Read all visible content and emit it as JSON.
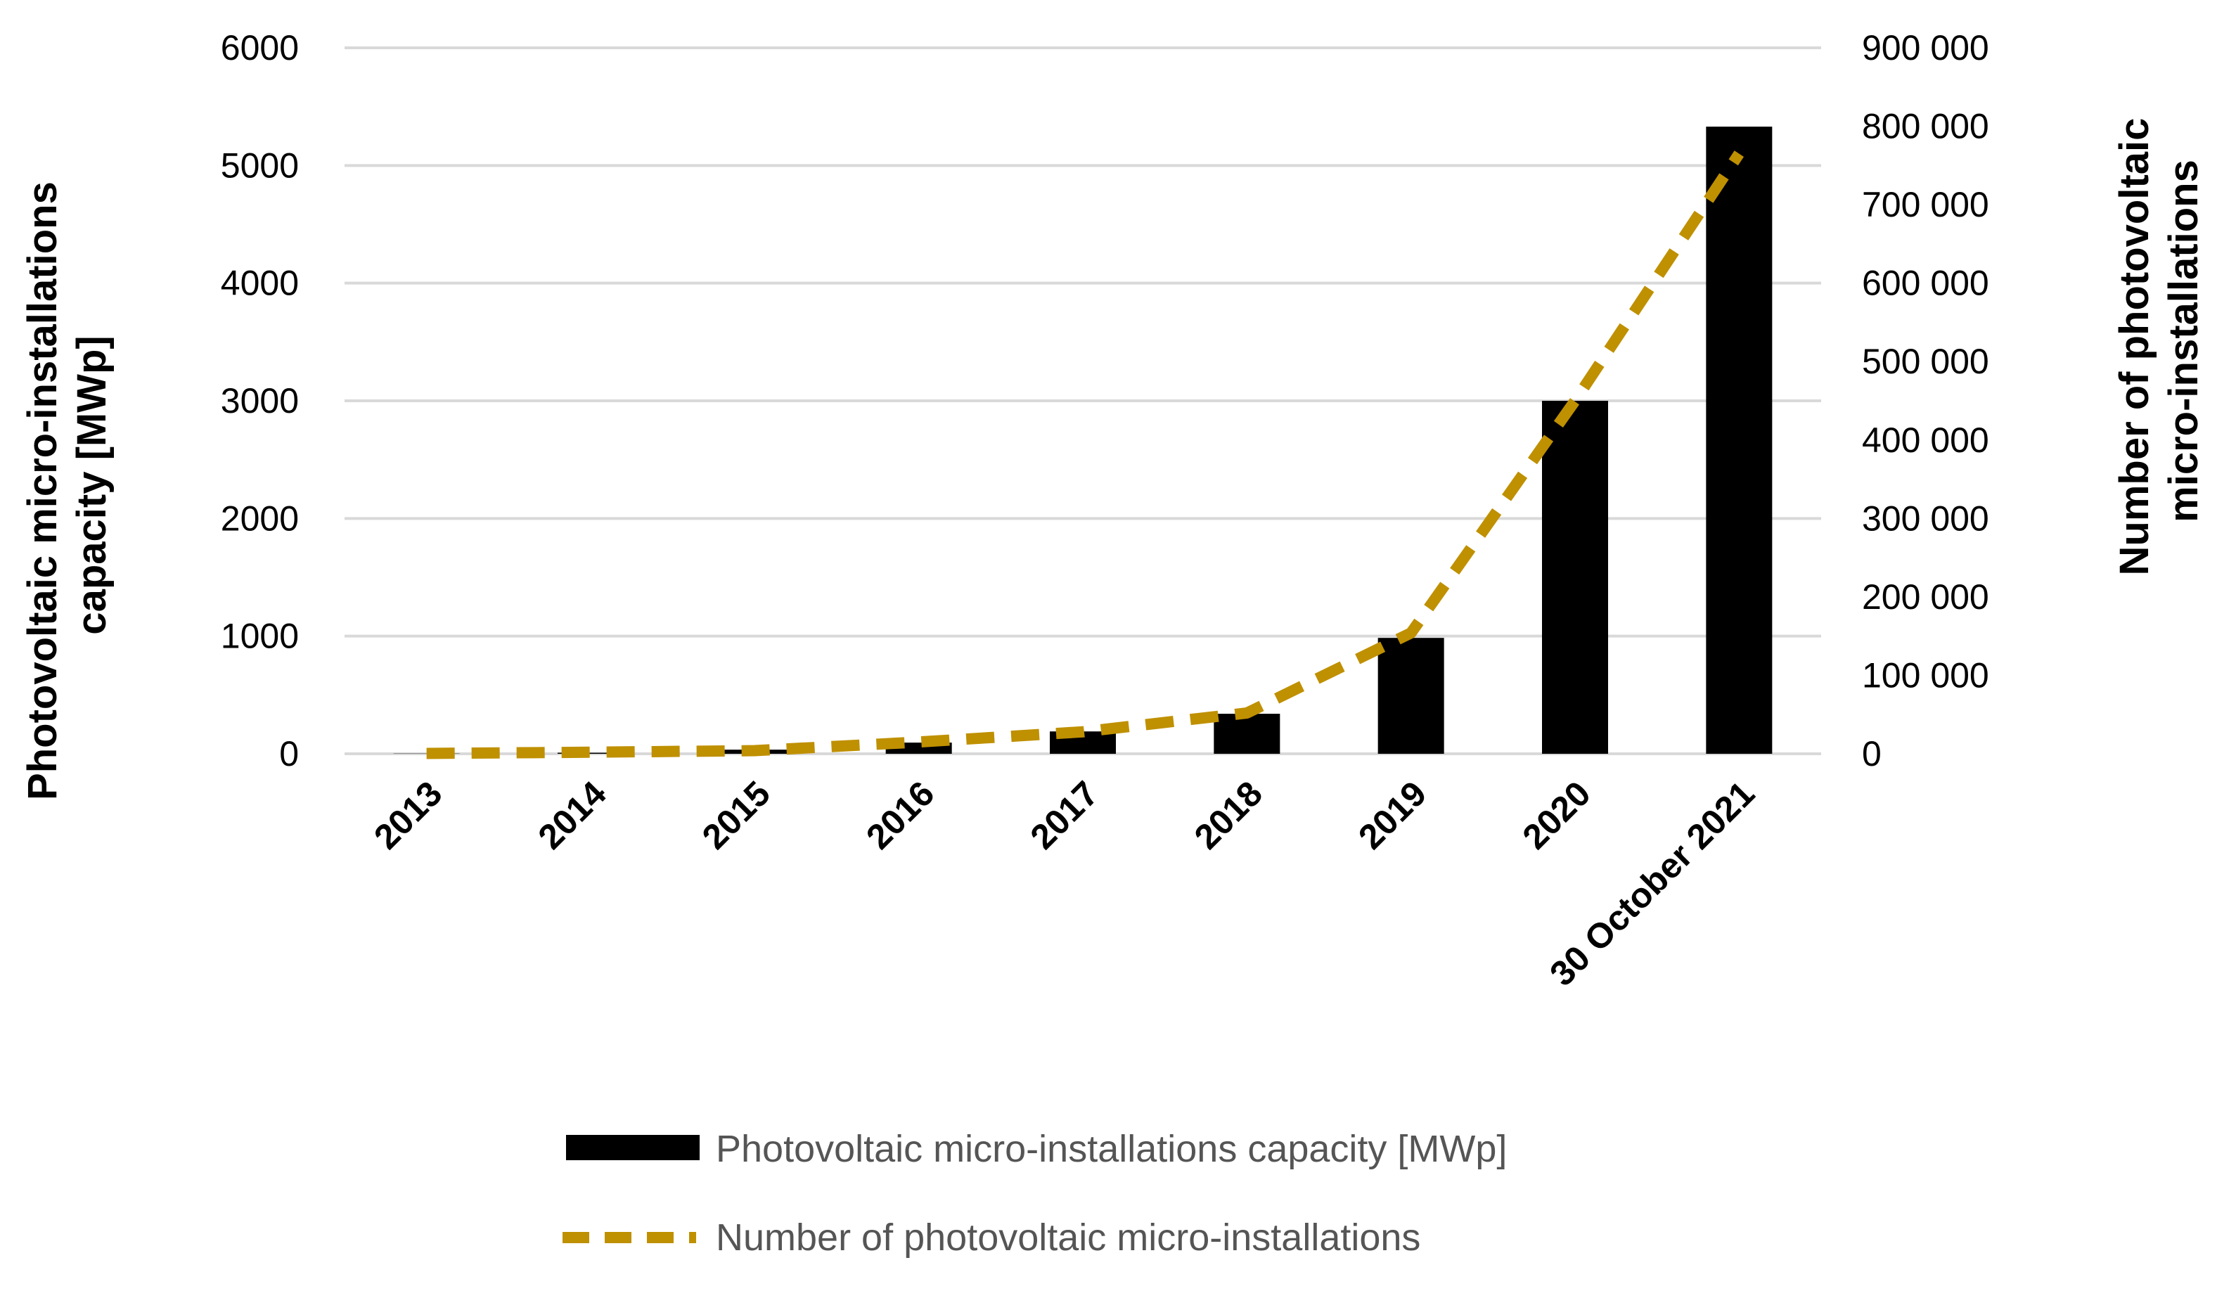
{
  "chart_data": {
    "type": "bar",
    "categories": [
      "2013",
      "2014",
      "2015",
      "2016",
      "2017",
      "2018",
      "2019",
      "2020",
      "30 October 2021"
    ],
    "series": [
      {
        "name": "Photovoltaic micro-installations capacity [MWp]",
        "type": "bar",
        "axis": "left",
        "color": "#000000",
        "values": [
          2,
          9,
          35,
          95,
          190,
          340,
          985,
          3000,
          5330
        ]
      },
      {
        "name": "Number of photovoltaic micro-installations",
        "type": "line",
        "style": "dashed",
        "axis": "right",
        "color": "#BF9000",
        "values": [
          500,
          2000,
          4000,
          15000,
          28000,
          52000,
          154000,
          450000,
          765000
        ]
      }
    ],
    "left_axis": {
      "label_lines": [
        "Photovoltaic micro-installations",
        "capacity [MWp]"
      ],
      "ylim": [
        0,
        6000
      ],
      "ticks": [
        "0",
        "1000",
        "2000",
        "3000",
        "4000",
        "5000",
        "6000"
      ]
    },
    "right_axis": {
      "label_lines": [
        "Number of photovoltaic",
        "micro-installations"
      ],
      "ylim": [
        0,
        900000
      ],
      "ticks": [
        "0",
        "100 000",
        "200 000",
        "300 000",
        "400 000",
        "500 000",
        "600 000",
        "700 000",
        "800 000",
        "900 000"
      ]
    },
    "legend": {
      "position": "bottom",
      "entries": [
        "Photovoltaic micro-installations capacity [MWp]",
        "Number of photovoltaic micro-installations"
      ]
    },
    "grid": true
  }
}
